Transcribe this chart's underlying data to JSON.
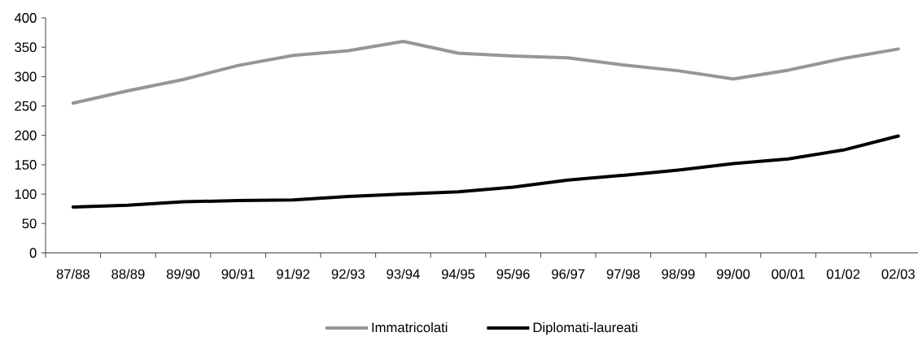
{
  "chart_data": {
    "type": "line",
    "categories": [
      "87/88",
      "88/89",
      "89/90",
      "90/91",
      "91/92",
      "92/93",
      "93/94",
      "94/95",
      "95/96",
      "96/97",
      "97/98",
      "98/99",
      "99/00",
      "00/01",
      "01/02",
      "02/03"
    ],
    "series": [
      {
        "name": "Immatricolati",
        "color": "#969696",
        "values": [
          255,
          276,
          295,
          319,
          336,
          344,
          360,
          340,
          335,
          332,
          320,
          310,
          296,
          311,
          331,
          347
        ]
      },
      {
        "name": "Diplomati-laureati",
        "color": "#000000",
        "values": [
          78,
          81,
          87,
          89,
          90,
          96,
          100,
          104,
          112,
          124,
          132,
          141,
          152,
          160,
          175,
          199
        ]
      }
    ],
    "ylim": [
      0,
      400
    ],
    "yticks": [
      0,
      50,
      100,
      150,
      200,
      250,
      300,
      350,
      400
    ],
    "legend": "bottom",
    "marker": "none",
    "line_style": "solid"
  }
}
